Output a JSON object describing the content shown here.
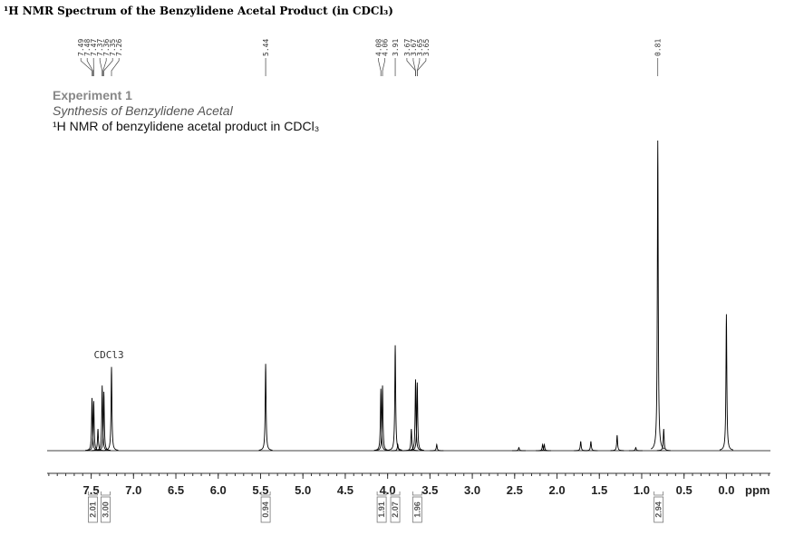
{
  "chart_data": {
    "type": "nmr",
    "title": "¹H NMR Spectrum of the Benzylidene Acetal Product (in CDCl₃)",
    "header": [
      "Experiment 1",
      "Synthesis of Benzylidene Acetal",
      "¹H NMR of benzylidene acetal product in CDCl₃"
    ],
    "peak_labels": [
      7.49,
      7.48,
      7.47,
      7.37,
      7.36,
      7.35,
      7.26,
      5.44,
      4.08,
      4.06,
      3.91,
      3.67,
      3.67,
      3.65,
      3.65,
      0.81
    ],
    "peaks": {
      "x": [
        7.49,
        7.47,
        7.37,
        7.35,
        7.42,
        7.26,
        5.44,
        4.08,
        4.06,
        3.91,
        3.88,
        3.72,
        3.67,
        3.65,
        3.42,
        2.45,
        2.17,
        2.15,
        1.72,
        1.6,
        1.29,
        1.07,
        0.81,
        0.74,
        0.0
      ],
      "values": [
        17,
        16,
        21,
        19,
        7,
        27,
        28,
        20,
        21,
        34,
        2,
        7,
        23,
        22,
        2,
        1,
        2,
        2,
        3,
        3,
        5,
        1,
        100,
        7,
        44
      ]
    },
    "annotation": {
      "text": "CDCl3",
      "x": 7.26
    },
    "integrals": {
      "x": [
        7.48,
        7.33,
        5.44,
        4.07,
        3.91,
        3.65,
        0.8
      ],
      "values": [
        2.01,
        3.0,
        0.94,
        1.91,
        2.07,
        1.96,
        2.94
      ],
      "value_labels": [
        "2.01",
        "3.00",
        "0.94",
        "1.91",
        "2.07",
        "1.96",
        "2.94"
      ]
    },
    "xlim": [
      8.02,
      -0.52
    ],
    "xticks": [
      7.5,
      {
        "value": 7,
        "label": "7.0"
      },
      6.5,
      {
        "value": 6,
        "label": "6.0"
      },
      5.5,
      {
        "value": 5,
        "label": "5.0"
      },
      4.5,
      {
        "value": 4,
        "label": "4.0"
      },
      3.5,
      {
        "value": 3,
        "label": "3.0"
      },
      2.5,
      {
        "value": 2,
        "label": "2.0"
      },
      1.5,
      {
        "value": 1,
        "label": "1.0"
      },
      0.5,
      {
        "value": 0,
        "label": "0.0"
      }
    ],
    "minor_tick_step": 0.1,
    "xlabel": "ppm",
    "ylim": [
      0,
      100
    ],
    "color": "#000000"
  }
}
